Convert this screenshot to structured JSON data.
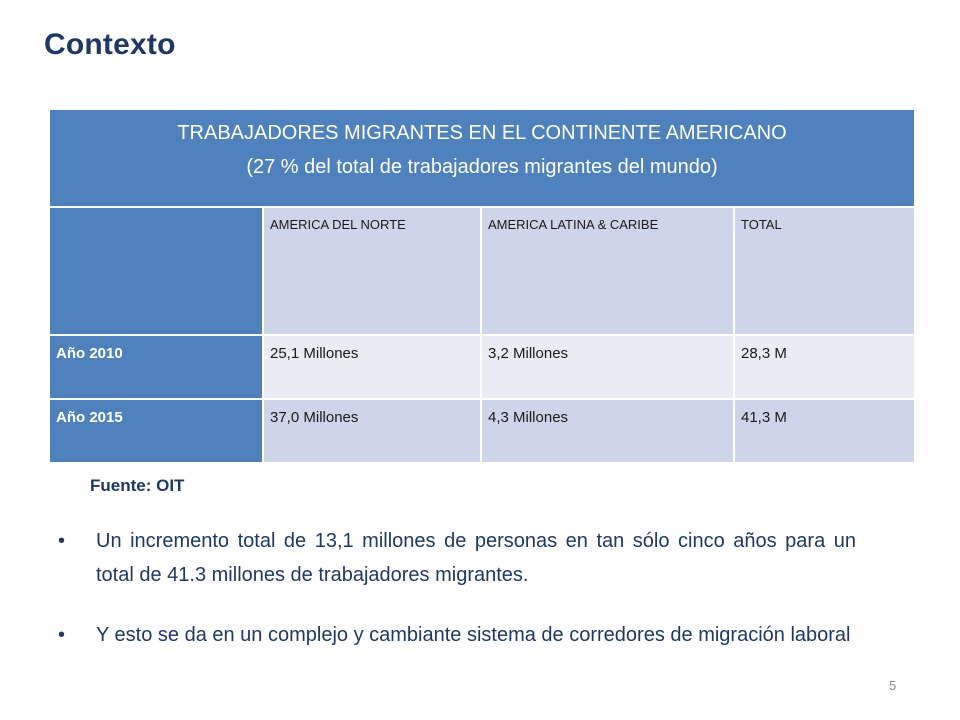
{
  "slide": {
    "title": "Contexto",
    "page_number": "5"
  },
  "table": {
    "title_line1": "TRABAJADORES MIGRANTES EN EL CONTINENTE AMERICANO",
    "title_line2": "(27 % del total de trabajadores migrantes del mundo)",
    "columns": [
      "",
      "AMERICA DEL NORTE",
      "AMERICA LATINA & CARIBE",
      "TOTAL"
    ],
    "rows": [
      {
        "label": "Año 2010",
        "cells": [
          "25,1 Millones",
          "3,2 Millones",
          "28,3 M"
        ]
      },
      {
        "label": "Año 2015",
        "cells": [
          "37,0 Millones",
          "4,3 Millones",
          "41,3 M"
        ]
      }
    ],
    "source": "Fuente: OIT"
  },
  "bullets": [
    "Un incremento total de 13,1 millones de personas en tan sólo cinco años para un total de 41.3 millones de trabajadores migrantes.",
    "Y esto se da en un complejo y cambiante sistema de corredores de migración laboral"
  ],
  "colors": {
    "title": "#1f3864",
    "header_blue": "#4f81bd",
    "cell_dark": "#cfd5e8",
    "cell_light": "#e9ecf5"
  }
}
